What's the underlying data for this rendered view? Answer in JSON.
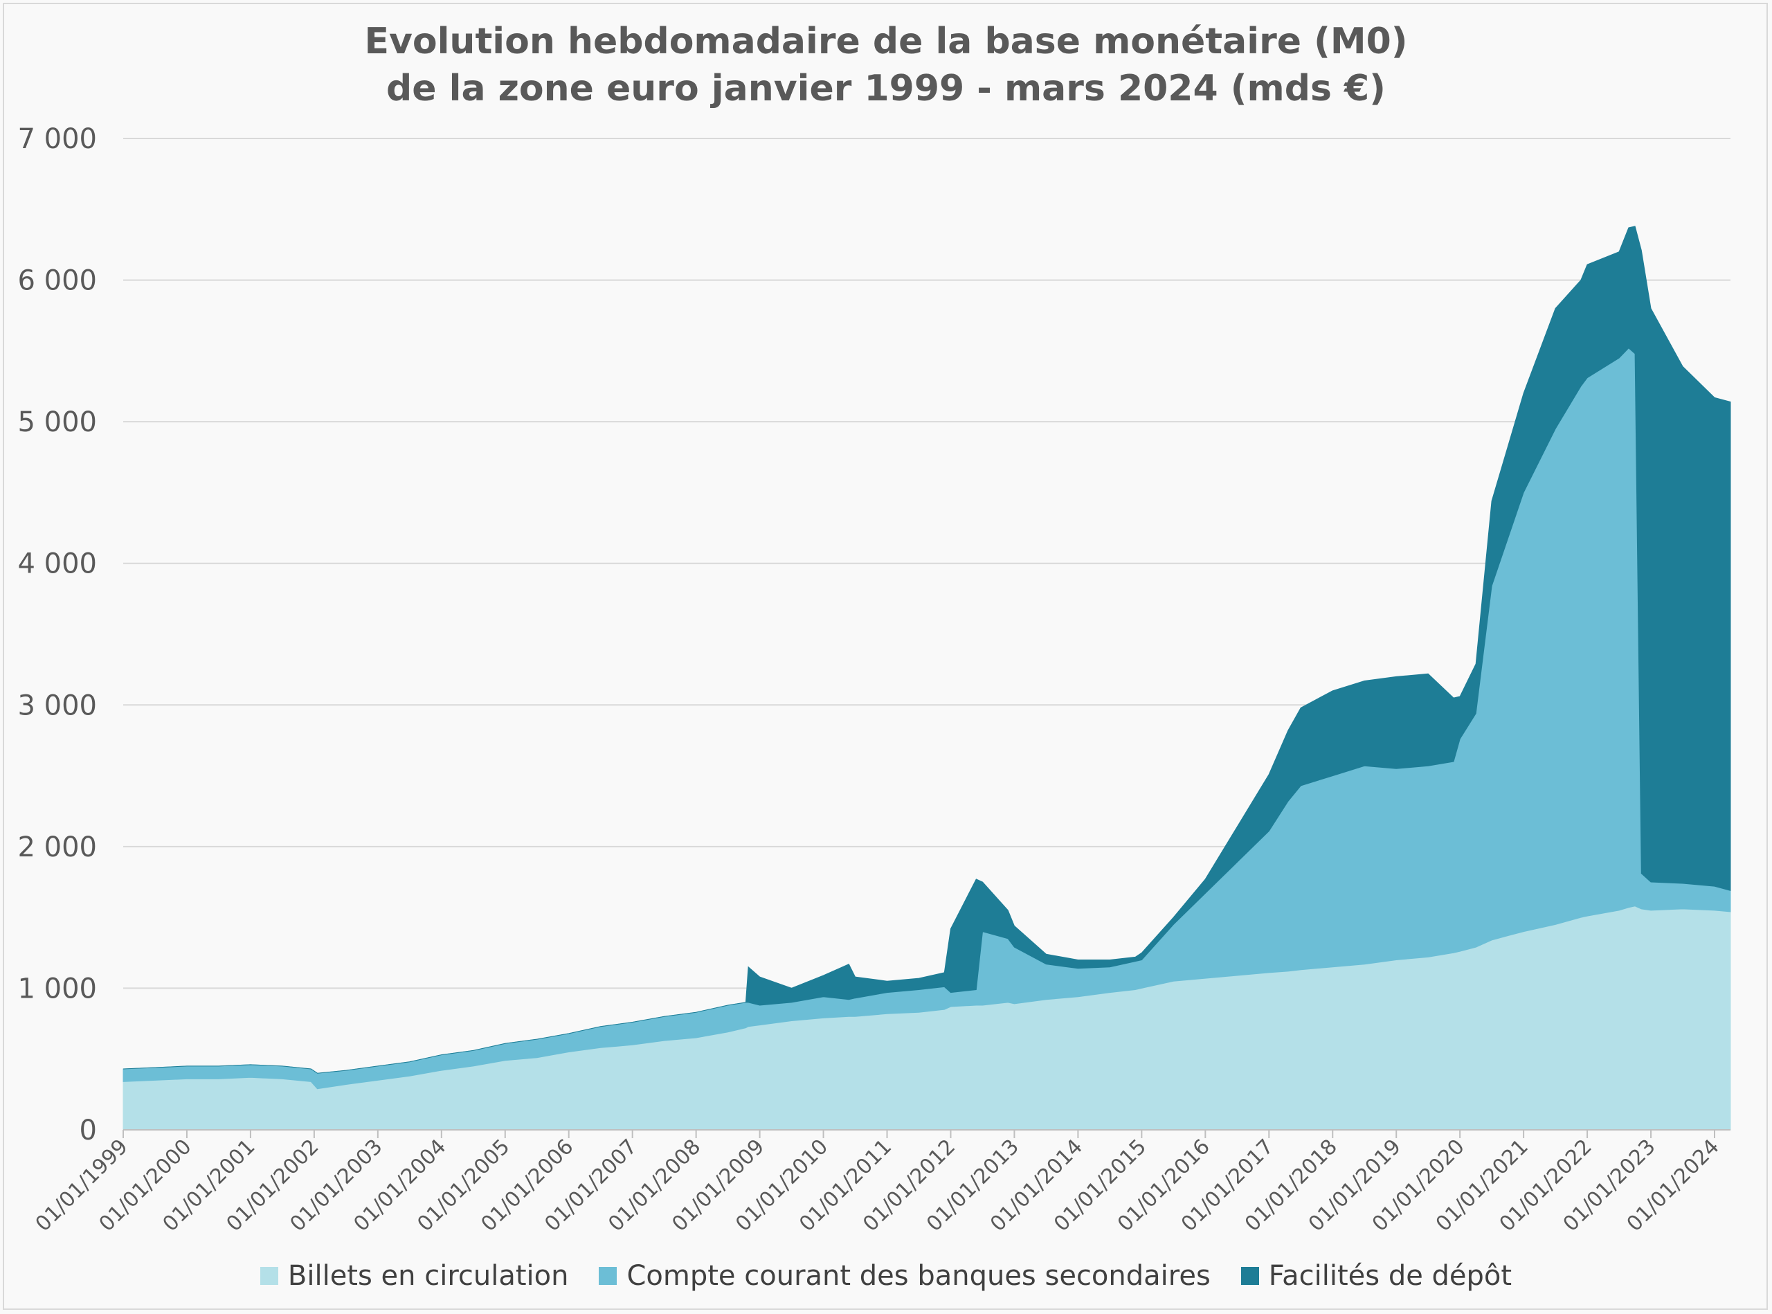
{
  "chart_data": {
    "type": "area",
    "stacked": true,
    "title": "Evolution hebdomadaire de la base monétaire (M0)\nde la zone euro janvier 1999 - mars 2024 (mds €)",
    "xlabel": "",
    "ylabel": "",
    "ylim": [
      0,
      7000
    ],
    "yticks": [
      "0",
      "1 000",
      "2 000",
      "3 000",
      "4 000",
      "5 000",
      "6 000",
      "7 000"
    ],
    "xlim": [
      1999.0,
      2024.25
    ],
    "xticks": [
      "01/01/1999",
      "01/01/2000",
      "01/01/2001",
      "01/01/2002",
      "01/01/2003",
      "01/01/2004",
      "01/01/2005",
      "01/01/2006",
      "01/01/2007",
      "01/01/2008",
      "01/01/2009",
      "01/01/2010",
      "01/01/2011",
      "01/01/2012",
      "01/01/2013",
      "01/01/2014",
      "01/01/2015",
      "01/01/2016",
      "01/01/2017",
      "01/01/2018",
      "01/01/2019",
      "01/01/2020",
      "01/01/2021",
      "01/01/2022",
      "01/01/2023",
      "01/01/2024"
    ],
    "grid": true,
    "legend_position": "bottom",
    "x": [
      1999.0,
      1999.5,
      2000.0,
      2000.5,
      2001.0,
      2001.5,
      2001.95,
      2002.05,
      2002.5,
      2003.0,
      2003.5,
      2004.0,
      2004.5,
      2005.0,
      2005.5,
      2006.0,
      2006.5,
      2007.0,
      2007.5,
      2008.0,
      2008.5,
      2008.78,
      2008.82,
      2009.0,
      2009.5,
      2010.0,
      2010.4,
      2010.5,
      2011.0,
      2011.5,
      2011.9,
      2012.0,
      2012.4,
      2012.5,
      2012.9,
      2013.0,
      2013.5,
      2014.0,
      2014.5,
      2014.9,
      2015.0,
      2015.5,
      2016.0,
      2016.5,
      2017.0,
      2017.3,
      2017.5,
      2018.0,
      2018.5,
      2019.0,
      2019.5,
      2019.9,
      2020.0,
      2020.25,
      2020.5,
      2020.75,
      2021.0,
      2021.5,
      2021.9,
      2022.0,
      2022.5,
      2022.65,
      2022.75,
      2022.85,
      2023.0,
      2023.5,
      2024.0,
      2024.25
    ],
    "series": [
      {
        "name": "Billets en circulation",
        "color": "#b4e0e8",
        "values": [
          340,
          350,
          360,
          360,
          370,
          360,
          340,
          290,
          320,
          350,
          380,
          420,
          450,
          490,
          510,
          550,
          580,
          600,
          630,
          650,
          690,
          720,
          730,
          740,
          770,
          790,
          800,
          800,
          820,
          830,
          850,
          870,
          880,
          880,
          900,
          890,
          920,
          940,
          970,
          990,
          1000,
          1050,
          1070,
          1090,
          1110,
          1120,
          1130,
          1150,
          1170,
          1200,
          1220,
          1250,
          1260,
          1290,
          1340,
          1370,
          1400,
          1450,
          1500,
          1510,
          1550,
          1570,
          1580,
          1560,
          1550,
          1560,
          1550,
          1540
        ]
      },
      {
        "name": "Compte courant des banques secondaires",
        "color": "#6cbed6",
        "values": [
          90,
          90,
          90,
          90,
          90,
          90,
          90,
          110,
          100,
          100,
          100,
          110,
          110,
          120,
          130,
          130,
          150,
          160,
          170,
          180,
          190,
          180,
          170,
          140,
          130,
          150,
          120,
          130,
          150,
          160,
          160,
          100,
          110,
          520,
          450,
          400,
          250,
          200,
          180,
          200,
          200,
          400,
          600,
          800,
          1000,
          1200,
          1300,
          1350,
          1400,
          1350,
          1350,
          1350,
          1500,
          1650,
          2500,
          2800,
          3100,
          3500,
          3750,
          3800,
          3900,
          3950,
          3900,
          250,
          200,
          180,
          170,
          150
        ]
      },
      {
        "name": "Facilités de dépôt",
        "color": "#1e7d96",
        "values": [
          0,
          0,
          0,
          0,
          0,
          0,
          0,
          0,
          0,
          0,
          0,
          0,
          0,
          0,
          0,
          0,
          0,
          0,
          0,
          0,
          0,
          0,
          250,
          200,
          100,
          150,
          250,
          150,
          80,
          80,
          100,
          450,
          780,
          350,
          200,
          150,
          70,
          60,
          50,
          30,
          50,
          50,
          100,
          250,
          400,
          500,
          550,
          600,
          600,
          650,
          650,
          450,
          300,
          350,
          600,
          650,
          700,
          850,
          750,
          800,
          750,
          850,
          900,
          4400,
          4050,
          3650,
          3450,
          3450
        ]
      }
    ]
  }
}
